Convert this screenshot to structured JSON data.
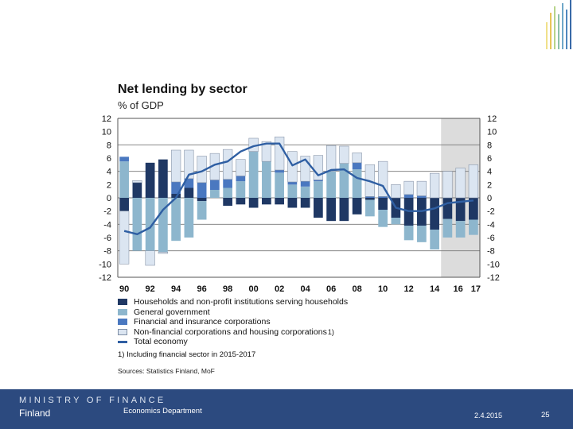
{
  "slide": {
    "footer": {
      "ministry": "MINISTRY OF FINANCE",
      "country": "Finland",
      "department": "Economics Department",
      "date": "2.4.2015",
      "page": "25",
      "background_color": "#2c4a7f"
    },
    "footnote": "1) Including financial sector in 2015-2017",
    "source": "Sources: Statistics Finland, MoF"
  },
  "chart_data": {
    "type": "bar",
    "subtype": "stacked bar with line",
    "title": "Net lending by sector",
    "subtitle": "% of GDP",
    "xlabel": "",
    "ylabel": "% of GDP",
    "ylim": [
      -12,
      12
    ],
    "yticks": [
      "12",
      "10",
      "8",
      "6",
      "4",
      "2",
      "0",
      "-2",
      "-4",
      "-6",
      "-8",
      "-10",
      "-12"
    ],
    "xtick_labels": [
      "90",
      "92",
      "94",
      "96",
      "98",
      "00",
      "02",
      "04",
      "06",
      "08",
      "10",
      "12",
      "14",
      "16",
      "17"
    ],
    "grid": true,
    "forecast_shading": "2015-2017",
    "categories": [
      "1990",
      "1991",
      "1992",
      "1993",
      "1994",
      "1995",
      "1996",
      "1997",
      "1998",
      "1999",
      "2000",
      "2001",
      "2002",
      "2003",
      "2004",
      "2005",
      "2006",
      "2007",
      "2008",
      "2009",
      "2010",
      "2011",
      "2012",
      "2013",
      "2014",
      "2015",
      "2016",
      "2017"
    ],
    "series": [
      {
        "name": "Households and non-profit institutions serving households",
        "color": "#1f3864",
        "values": [
          -2.0,
          2.3,
          5.3,
          5.8,
          0.6,
          1.5,
          -0.5,
          0.0,
          -1.2,
          -1.0,
          -1.5,
          -1.0,
          -1.0,
          -1.5,
          -1.5,
          -3.0,
          -3.5,
          -3.5,
          -2.5,
          -0.3,
          -1.8,
          -3.0,
          -4.2,
          -4.2,
          -4.8,
          -3.2,
          -3.5,
          -3.3
        ]
      },
      {
        "name": "General government",
        "color": "#8db6cd",
        "values": [
          5.5,
          -8.0,
          -8.0,
          -8.2,
          -6.5,
          -6.0,
          -2.8,
          1.2,
          1.5,
          2.5,
          7.0,
          5.5,
          3.8,
          2.0,
          1.7,
          2.5,
          4.0,
          5.2,
          4.3,
          -2.5,
          -2.6,
          -1.0,
          -2.2,
          -2.5,
          -3.0,
          -2.8,
          -2.5,
          -2.3
        ]
      },
      {
        "name": "Financial and insurance corporations",
        "color": "#4a78c0",
        "values": [
          0.7,
          0.0,
          0.0,
          0.0,
          1.8,
          1.4,
          2.3,
          1.5,
          1.3,
          0.8,
          0.0,
          0.0,
          0.4,
          0.4,
          0.8,
          0.2,
          0.0,
          0.0,
          1.0,
          0.2,
          0.2,
          0.0,
          0.5,
          0.3,
          0.0,
          0.0,
          0.0,
          0.0
        ]
      },
      {
        "name": "Non-financial corporations and housing corporations",
        "superscript": "1)",
        "color": "#dbe5f1",
        "values": [
          -8.0,
          0.3,
          -2.2,
          -0.2,
          4.8,
          4.3,
          4.0,
          4.0,
          4.5,
          2.5,
          2.0,
          3.0,
          5.0,
          4.6,
          3.8,
          3.7,
          3.9,
          2.6,
          1.5,
          4.8,
          5.3,
          2.0,
          2.0,
          2.2,
          3.7,
          4.0,
          4.5,
          5.0
        ]
      },
      {
        "name": "Total economy",
        "type": "line",
        "color": "#2f5fa3",
        "values": [
          -5.0,
          -5.5,
          -4.5,
          -1.8,
          0.0,
          3.5,
          4.0,
          5.0,
          5.5,
          7.0,
          7.8,
          8.2,
          8.2,
          4.9,
          5.8,
          3.4,
          4.2,
          4.3,
          3.0,
          2.5,
          1.8,
          -1.5,
          -2.0,
          -2.0,
          -1.6,
          -0.8,
          -0.6,
          -0.4
        ]
      }
    ]
  }
}
